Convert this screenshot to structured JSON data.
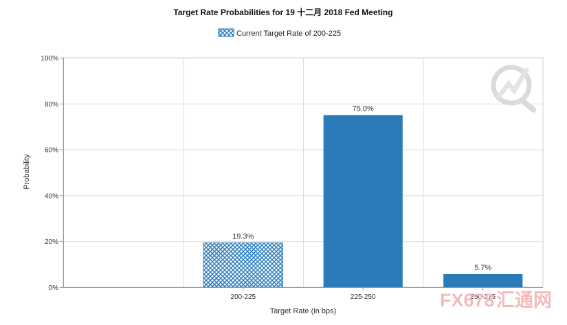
{
  "chart_data": {
    "type": "bar",
    "title": "Target Rate Probabilities for 19 十二月 2018  Fed Meeting",
    "categories": [
      "200-225",
      "225-250",
      "250-275"
    ],
    "values": [
      19.3,
      75.0,
      5.7
    ],
    "value_labels": [
      "19.3%",
      "75.0%",
      "5.7%"
    ],
    "legend": {
      "label": "Current Target Rate of 200-225",
      "position": "top-center"
    },
    "xlabel": "Target Rate (in bps)",
    "ylabel": "Probability",
    "ylim": [
      0,
      100
    ],
    "yticks": [
      0,
      20,
      40,
      60,
      80,
      100
    ],
    "ytick_labels": [
      "0%",
      "20%",
      "40%",
      "60%",
      "80%",
      "100%"
    ],
    "grid": true,
    "current_category_index": 0,
    "colors": {
      "bar": "#2b7bb9",
      "current_hatch": "#2b7bb9",
      "grid": "#dddddd",
      "axis": "#999999"
    }
  },
  "watermark": {
    "text": "FX678",
    "suffix": "汇通网",
    "icon": "fx678-logo-icon",
    "color": "#f2b9b9",
    "logo_color": "#cfcfcf"
  }
}
